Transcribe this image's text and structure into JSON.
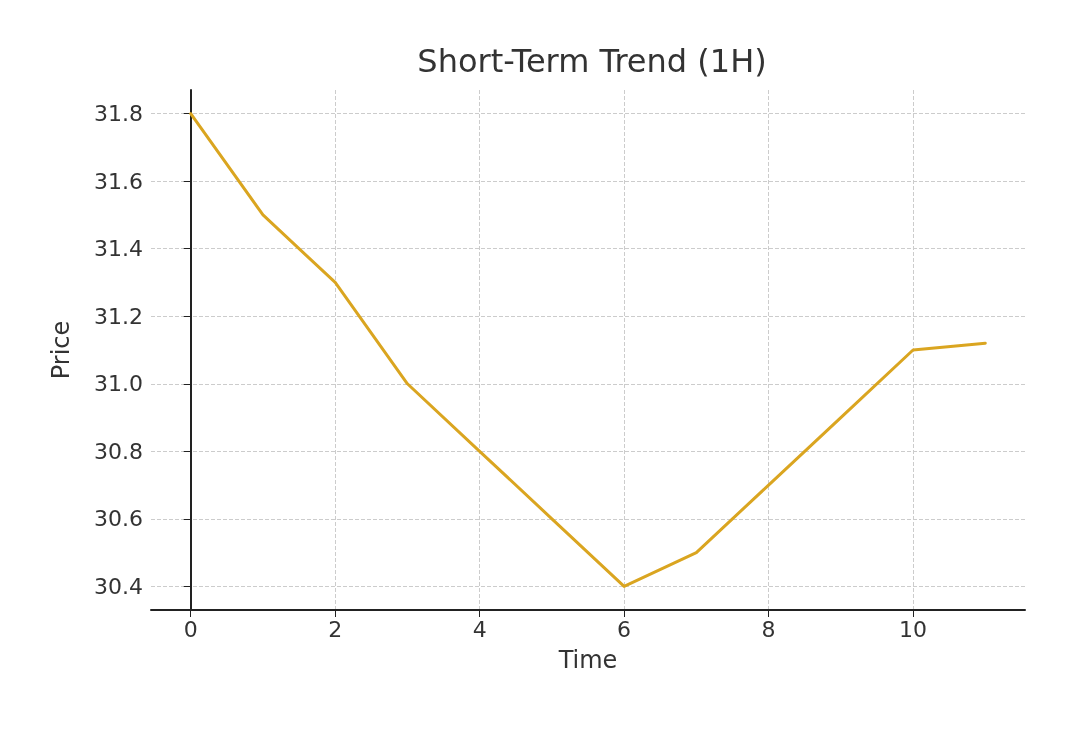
{
  "chart_data": {
    "type": "line",
    "title": "Short-Term Trend (1H)",
    "xlabel": "Time",
    "ylabel": "Price",
    "x": [
      0,
      1,
      2,
      3,
      4,
      5,
      6,
      7,
      8,
      9,
      10,
      11
    ],
    "series": [
      {
        "color": "#daa520",
        "values": [
          31.8,
          31.5,
          31.3,
          31.0,
          30.8,
          30.6,
          30.4,
          30.5,
          30.7,
          30.9,
          31.1,
          31.12
        ]
      }
    ],
    "xlim": [
      -0.55,
      11.55
    ],
    "xticks": [
      0,
      2,
      4,
      6,
      8,
      10
    ],
    "ylim": [
      30.33,
      31.87
    ],
    "yticks": [
      30.4,
      30.6,
      30.8,
      {
        "value": 31,
        "label": "31.0"
      },
      31.2,
      31.4,
      31.6,
      31.8
    ],
    "grid": true,
    "marker": "none",
    "line_style": "solid"
  }
}
